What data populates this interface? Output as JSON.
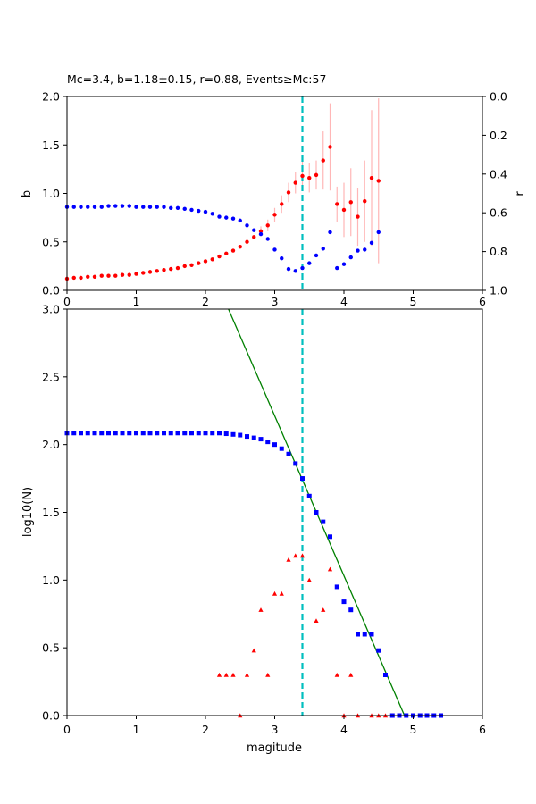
{
  "chart_data": [
    {
      "type": "scatter",
      "title": "Mc=3.4, b=1.18±0.15, r=0.88, Events≥Mc:57",
      "xlabel": "",
      "ylabel": "b",
      "ylabel_right": "r",
      "xlim": [
        0,
        6
      ],
      "ylim": [
        0,
        2.0
      ],
      "ylim_right_inverted": [
        1.0,
        0.0
      ],
      "x_ticks": [
        0,
        1,
        2,
        3,
        4,
        5,
        6
      ],
      "y_ticks": [
        0.0,
        0.5,
        1.0,
        1.5,
        2.0
      ],
      "y_ticks_right": [
        0.0,
        0.2,
        0.4,
        0.6,
        0.8,
        1.0
      ],
      "mc_line": 3.4,
      "mc_line_color": "#00bfbf",
      "series": [
        {
          "axis": "left",
          "color": "#ff0000",
          "x": [
            0.0,
            0.1,
            0.2,
            0.3,
            0.4,
            0.5,
            0.6,
            0.7,
            0.8,
            0.9,
            1.0,
            1.1,
            1.2,
            1.3,
            1.4,
            1.5,
            1.6,
            1.7,
            1.8,
            1.9,
            2.0,
            2.1,
            2.2,
            2.3,
            2.4,
            2.5,
            2.6,
            2.7,
            2.8,
            2.9,
            3.0,
            3.1,
            3.2,
            3.3,
            3.4,
            3.5,
            3.6,
            3.7,
            3.8,
            3.9,
            4.0,
            4.1,
            4.2,
            4.3,
            4.4,
            4.5
          ],
          "y": [
            0.12,
            0.13,
            0.13,
            0.14,
            0.14,
            0.15,
            0.15,
            0.15,
            0.16,
            0.16,
            0.17,
            0.18,
            0.19,
            0.2,
            0.21,
            0.22,
            0.23,
            0.25,
            0.26,
            0.28,
            0.3,
            0.32,
            0.35,
            0.38,
            0.41,
            0.45,
            0.5,
            0.55,
            0.61,
            0.67,
            0.78,
            0.89,
            1.01,
            1.11,
            1.18,
            1.16,
            1.19,
            1.34,
            1.48,
            0.89,
            0.83,
            0.91,
            0.76,
            0.92,
            1.16,
            1.13
          ],
          "err": [
            0,
            0,
            0,
            0,
            0,
            0,
            0,
            0,
            0,
            0,
            0,
            0,
            0,
            0,
            0,
            0,
            0,
            0,
            0,
            0,
            0,
            0,
            0,
            0,
            0,
            0,
            0,
            0,
            0.05,
            0.06,
            0.07,
            0.09,
            0.1,
            0.11,
            0.15,
            0.15,
            0.15,
            0.3,
            0.45,
            0.18,
            0.28,
            0.35,
            0.3,
            0.42,
            0.7,
            0.85
          ]
        },
        {
          "axis": "right",
          "color": "#0000ff",
          "x": [
            0.0,
            0.1,
            0.2,
            0.3,
            0.4,
            0.5,
            0.6,
            0.7,
            0.8,
            0.9,
            1.0,
            1.1,
            1.2,
            1.3,
            1.4,
            1.5,
            1.6,
            1.7,
            1.8,
            1.9,
            2.0,
            2.1,
            2.2,
            2.3,
            2.4,
            2.5,
            2.6,
            2.7,
            2.8,
            2.9,
            3.0,
            3.1,
            3.2,
            3.3,
            3.4,
            3.5,
            3.6,
            3.7,
            3.8,
            3.9,
            4.0,
            4.1,
            4.2,
            4.3,
            4.4,
            4.5
          ],
          "y": [
            0.57,
            0.57,
            0.57,
            0.57,
            0.57,
            0.57,
            0.565,
            0.565,
            0.565,
            0.565,
            0.57,
            0.57,
            0.57,
            0.57,
            0.57,
            0.575,
            0.575,
            0.58,
            0.585,
            0.59,
            0.595,
            0.605,
            0.62,
            0.625,
            0.63,
            0.64,
            0.665,
            0.69,
            0.71,
            0.735,
            0.79,
            0.835,
            0.89,
            0.9,
            0.885,
            0.86,
            0.82,
            0.785,
            0.7,
            0.885,
            0.865,
            0.83,
            0.795,
            0.79,
            0.755,
            0.7
          ]
        }
      ]
    },
    {
      "type": "scatter",
      "title": "",
      "xlabel": "magitude",
      "ylabel": "log10(N)",
      "xlim": [
        0,
        6
      ],
      "ylim": [
        0,
        3.0
      ],
      "x_ticks": [
        0,
        1,
        2,
        3,
        4,
        5,
        6
      ],
      "y_ticks": [
        0.0,
        0.5,
        1.0,
        1.5,
        2.0,
        2.5,
        3.0
      ],
      "mc_line": 3.4,
      "mc_line_color": "#00bfbf",
      "fit_line": {
        "color": "#008000",
        "a": 5.752,
        "b": 1.18
      },
      "series": [
        {
          "marker": "square",
          "color": "#0000ff",
          "x": [
            0.0,
            0.1,
            0.2,
            0.3,
            0.4,
            0.5,
            0.6,
            0.7,
            0.8,
            0.9,
            1.0,
            1.1,
            1.2,
            1.3,
            1.4,
            1.5,
            1.6,
            1.7,
            1.8,
            1.9,
            2.0,
            2.1,
            2.2,
            2.3,
            2.4,
            2.5,
            2.6,
            2.7,
            2.8,
            2.9,
            3.0,
            3.1,
            3.2,
            3.3,
            3.4,
            3.5,
            3.6,
            3.7,
            3.8,
            3.9,
            4.0,
            4.1,
            4.2,
            4.3,
            4.4,
            4.5,
            4.6,
            4.7,
            4.8,
            4.9,
            5.0,
            5.1,
            5.2,
            5.3,
            5.4
          ],
          "y": [
            2.085,
            2.085,
            2.085,
            2.085,
            2.085,
            2.085,
            2.085,
            2.085,
            2.085,
            2.085,
            2.085,
            2.085,
            2.085,
            2.085,
            2.085,
            2.085,
            2.085,
            2.085,
            2.085,
            2.085,
            2.085,
            2.085,
            2.085,
            2.08,
            2.075,
            2.07,
            2.06,
            2.05,
            2.04,
            2.02,
            2.0,
            1.97,
            1.93,
            1.86,
            1.75,
            1.62,
            1.5,
            1.43,
            1.32,
            0.95,
            0.84,
            0.78,
            0.6,
            0.6,
            0.6,
            0.48,
            0.3,
            0,
            0,
            0,
            0,
            0,
            0,
            0,
            0
          ]
        },
        {
          "marker": "triangle",
          "color": "#ff0000",
          "x": [
            2.2,
            2.3,
            2.4,
            2.5,
            2.6,
            2.7,
            2.8,
            2.9,
            3.0,
            3.1,
            3.2,
            3.3,
            3.4,
            3.5,
            3.6,
            3.7,
            3.8,
            3.9,
            4.0,
            4.1,
            4.2,
            4.4,
            4.5,
            4.6,
            4.7
          ],
          "y": [
            0.3,
            0.3,
            0.3,
            0,
            0.3,
            0.48,
            0.78,
            0.3,
            0.9,
            0.9,
            1.15,
            1.18,
            1.18,
            1.0,
            0.7,
            0.78,
            1.08,
            0.3,
            0,
            0.3,
            0,
            0,
            0,
            0,
            0
          ]
        }
      ]
    }
  ]
}
